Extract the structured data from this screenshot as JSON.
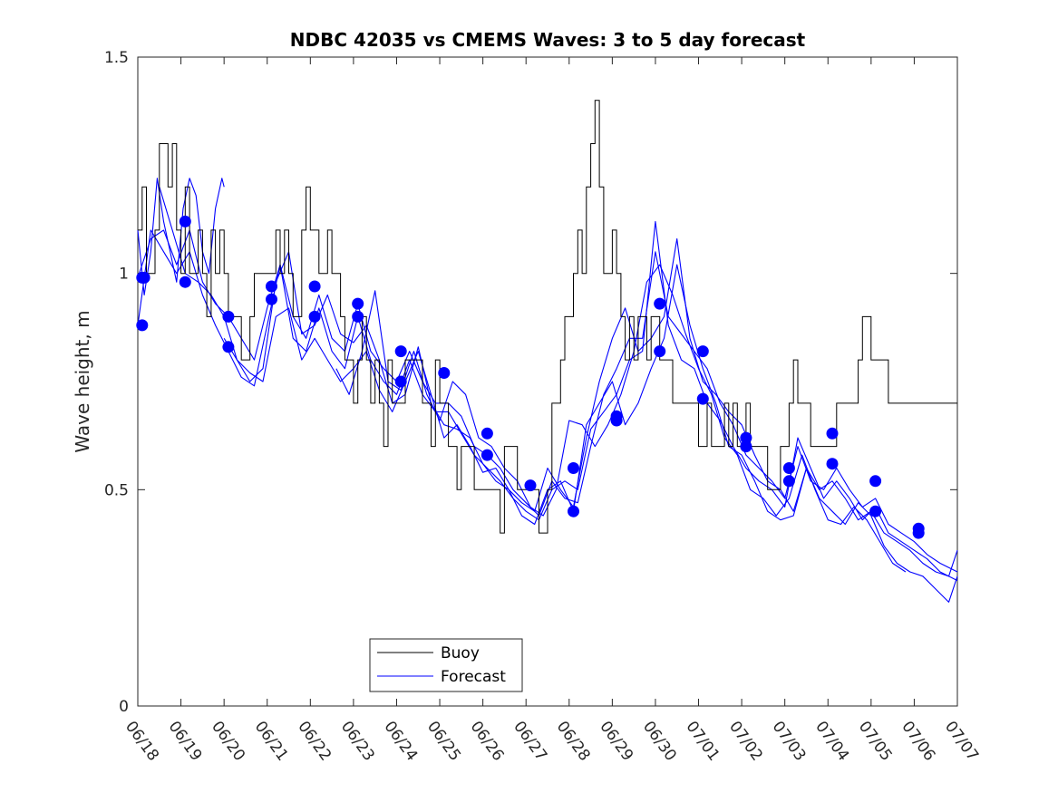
{
  "chart_data": {
    "type": "line",
    "title": "NDBC 42035 vs CMEMS Waves: 3 to 5 day forecast",
    "xlabel": "",
    "ylabel": "Wave height, m",
    "xlim": [
      "06/18",
      "07/07"
    ],
    "ylim": [
      0,
      1.5
    ],
    "yticks": [
      0,
      0.5,
      1,
      1.5
    ],
    "ytick_labels": [
      "0",
      "0.5",
      "1",
      "1.5"
    ],
    "xtick_labels": [
      "06/18",
      "06/19",
      "06/20",
      "06/21",
      "06/22",
      "06/23",
      "06/24",
      "06/25",
      "06/26",
      "06/27",
      "06/28",
      "06/29",
      "06/30",
      "07/01",
      "07/02",
      "07/03",
      "07/04",
      "07/05",
      "07/06",
      "07/07"
    ],
    "grid": false,
    "legend": {
      "placement": "bottom-center",
      "entries": [
        "Buoy",
        "Forecast"
      ]
    },
    "colors": {
      "buoy": "#000000",
      "forecast": "#0000ff",
      "markers": "#0000ff"
    },
    "buoy": {
      "name": "Buoy",
      "x": [
        0,
        0.1,
        0.2,
        0.3,
        0.4,
        0.5,
        0.6,
        0.7,
        0.8,
        0.9,
        1,
        1.1,
        1.2,
        1.3,
        1.4,
        1.5,
        1.6,
        1.7,
        1.8,
        1.9,
        2,
        2.1,
        2.2,
        2.3,
        2.4,
        2.5,
        2.6,
        2.7,
        2.8,
        2.9,
        3,
        3.1,
        3.2,
        3.3,
        3.4,
        3.5,
        3.6,
        3.7,
        3.8,
        3.9,
        4,
        4.1,
        4.2,
        4.3,
        4.4,
        4.5,
        4.6,
        4.7,
        4.8,
        4.9,
        5,
        5.1,
        5.2,
        5.3,
        5.4,
        5.5,
        5.6,
        5.7,
        5.8,
        5.9,
        6,
        6.1,
        6.2,
        6.3,
        6.4,
        6.5,
        6.6,
        6.7,
        6.8,
        6.9,
        7,
        7.1,
        7.2,
        7.3,
        7.4,
        7.5,
        7.6,
        7.7,
        7.8,
        7.9,
        8,
        8.1,
        8.2,
        8.3,
        8.4,
        8.5,
        8.6,
        8.7,
        8.8,
        8.9,
        9,
        9.1,
        9.2,
        9.3,
        9.4,
        9.5,
        9.6,
        9.7,
        9.8,
        9.9,
        10,
        10.1,
        10.2,
        10.3,
        10.4,
        10.5,
        10.6,
        10.7,
        10.8,
        10.9,
        11,
        11.1,
        11.2,
        11.3,
        11.4,
        11.5,
        11.6,
        11.7,
        11.8,
        11.9,
        12,
        12.1,
        12.2,
        12.3,
        12.4,
        12.5,
        12.6,
        12.7,
        12.8,
        12.9,
        13,
        13.1,
        13.2,
        13.3,
        13.4,
        13.5,
        13.6,
        13.7,
        13.8,
        13.9,
        14,
        14.1,
        14.2,
        14.3,
        14.4,
        14.5,
        14.6,
        14.7,
        14.8,
        14.9,
        15,
        15.1,
        15.2,
        15.3,
        15.4,
        15.5,
        15.6,
        15.7,
        15.8,
        15.9,
        16,
        16.1,
        16.2,
        16.3,
        16.4,
        16.5,
        16.6,
        16.7,
        16.8,
        16.9,
        17,
        17.1,
        17.2,
        17.3,
        17.4,
        17.5,
        17.6,
        17.7,
        17.8,
        17.9,
        18,
        18.1,
        18.2,
        18.3,
        18.4,
        18.5,
        18.6,
        18.7,
        18.8,
        18.9,
        19
      ],
      "y": [
        1.1,
        1.2,
        1.0,
        1.0,
        1.1,
        1.3,
        1.3,
        1.2,
        1.3,
        1.1,
        1.0,
        1.2,
        1.0,
        1.0,
        1.1,
        1.0,
        0.9,
        1.1,
        1.0,
        1.1,
        1.0,
        0.9,
        0.9,
        0.9,
        0.8,
        0.8,
        0.9,
        1.0,
        1.0,
        1.0,
        1.0,
        1.0,
        1.1,
        1.0,
        1.1,
        1.0,
        0.9,
        0.9,
        1.1,
        1.2,
        1.1,
        1.1,
        1.0,
        1.0,
        1.1,
        1.0,
        1.0,
        0.9,
        0.8,
        0.8,
        0.7,
        0.8,
        0.9,
        0.8,
        0.7,
        0.8,
        0.7,
        0.6,
        0.8,
        0.7,
        0.7,
        0.7,
        0.8,
        0.8,
        0.8,
        0.8,
        0.7,
        0.7,
        0.6,
        0.8,
        0.7,
        0.7,
        0.6,
        0.6,
        0.5,
        0.6,
        0.6,
        0.6,
        0.5,
        0.5,
        0.5,
        0.5,
        0.5,
        0.5,
        0.4,
        0.6,
        0.6,
        0.6,
        0.5,
        0.5,
        0.5,
        0.5,
        0.5,
        0.4,
        0.4,
        0.5,
        0.7,
        0.7,
        0.8,
        0.9,
        0.9,
        1.0,
        1.1,
        1.0,
        1.2,
        1.3,
        1.4,
        1.2,
        1.0,
        1.0,
        1.1,
        1.0,
        0.9,
        0.8,
        0.9,
        0.8,
        0.9,
        0.9,
        0.8,
        0.9,
        0.9,
        0.8,
        0.8,
        0.8,
        0.7,
        0.7,
        0.7,
        0.7,
        0.7,
        0.7,
        0.6,
        0.6,
        0.7,
        0.6,
        0.6,
        0.6,
        0.7,
        0.6,
        0.7,
        0.6,
        0.6,
        0.7,
        0.6,
        0.6,
        0.6,
        0.6,
        0.5,
        0.5,
        0.5,
        0.6,
        0.6,
        0.7,
        0.8,
        0.7,
        0.7,
        0.7,
        0.6,
        0.6,
        0.6,
        0.6,
        0.6,
        0.6,
        0.7,
        0.7,
        0.7,
        0.7,
        0.7,
        0.8,
        0.9,
        0.9,
        0.8,
        0.8,
        0.8,
        0.8,
        0.7,
        0.7,
        0.7,
        0.7,
        0.7,
        0.7,
        0.7,
        0.7,
        0.7,
        0.7,
        0.7,
        0.7,
        0.7,
        0.7,
        0.7,
        0.7,
        0.7
      ]
    },
    "forecast_series": [
      {
        "x": [
          0,
          0.15,
          0.3,
          0.45,
          0.6,
          0.75,
          0.9,
          1.05,
          1.2,
          1.35,
          1.5,
          1.65,
          1.8,
          1.95,
          2.0
        ],
        "y": [
          1.1,
          0.95,
          1.05,
          1.22,
          1.12,
          1.05,
          0.98,
          1.15,
          1.22,
          1.18,
          1.05,
          1.0,
          1.15,
          1.22,
          1.2
        ]
      },
      {
        "x": [
          0,
          0.3,
          0.6,
          0.9,
          1.2,
          1.5,
          1.8,
          2.1,
          2.4,
          2.7,
          3.0,
          3.3,
          3.6,
          3.9,
          4.2,
          4.5,
          4.8,
          5.1,
          5.4,
          5.7,
          6.0,
          6.3,
          6.6,
          6.9,
          7.2,
          7.5,
          7.8,
          8.1,
          8.4,
          8.7,
          9.0,
          9.3,
          9.6,
          9.9,
          10.2,
          10.5,
          10.8,
          11.1,
          11.4,
          11.7,
          12.0,
          12.3,
          12.6,
          12.9,
          13.2,
          13.5,
          13.8,
          14.1,
          14.4,
          14.7,
          15.0,
          15.3,
          15.6,
          15.9,
          16.2,
          16.5,
          16.8,
          17.1,
          17.4,
          17.7,
          18.0,
          18.3,
          18.6,
          19.0
        ],
        "y": [
          0.99,
          1.08,
          1.1,
          1.02,
          1.1,
          0.98,
          0.93,
          0.9,
          0.85,
          0.8,
          0.92,
          1.02,
          0.9,
          0.85,
          0.95,
          0.85,
          0.82,
          0.93,
          0.82,
          0.78,
          0.75,
          0.82,
          0.75,
          0.7,
          0.7,
          0.67,
          0.6,
          0.58,
          0.55,
          0.5,
          0.47,
          0.44,
          0.52,
          0.48,
          0.47,
          0.6,
          0.72,
          0.78,
          0.85,
          0.85,
          1.05,
          0.9,
          0.86,
          0.82,
          0.78,
          0.7,
          0.65,
          0.58,
          0.55,
          0.52,
          0.48,
          0.6,
          0.52,
          0.5,
          0.55,
          0.5,
          0.46,
          0.48,
          0.42,
          0.4,
          0.38,
          0.35,
          0.33,
          0.31
        ]
      },
      {
        "x": [
          0,
          0.3,
          0.6,
          0.9,
          1.2,
          1.5,
          1.8,
          2.1,
          2.4,
          2.7,
          3.0,
          3.3,
          3.6,
          3.9,
          4.2,
          4.5,
          4.8,
          5.1,
          5.4,
          5.7,
          6.0,
          6.3,
          6.6,
          6.9,
          7.2,
          7.5,
          7.8,
          8.1,
          8.4,
          8.7,
          9.0,
          9.3,
          9.6,
          9.9,
          10.2,
          10.5,
          10.8,
          11.1,
          11.4,
          11.7,
          12.0,
          12.3,
          12.6,
          12.9,
          13.2,
          13.5,
          13.8,
          14.1,
          14.4,
          14.7,
          15.0,
          15.3,
          15.6,
          15.9,
          16.2,
          16.5,
          16.8,
          17.1,
          17.4,
          17.7,
          18.0,
          18.3,
          18.6,
          19.0
        ],
        "y": [
          0.88,
          1.1,
          1.05,
          1.0,
          1.05,
          0.95,
          0.88,
          0.82,
          0.76,
          0.74,
          0.88,
          1.02,
          0.85,
          0.82,
          0.92,
          0.82,
          0.78,
          0.9,
          0.8,
          0.75,
          0.72,
          0.8,
          0.72,
          0.68,
          0.68,
          0.63,
          0.58,
          0.55,
          0.52,
          0.48,
          0.45,
          0.43,
          0.5,
          0.52,
          0.5,
          0.64,
          0.68,
          0.72,
          0.8,
          0.82,
          1.12,
          0.88,
          0.8,
          0.78,
          0.7,
          0.66,
          0.6,
          0.55,
          0.52,
          0.5,
          0.46,
          0.62,
          0.55,
          0.48,
          0.52,
          0.48,
          0.43,
          0.46,
          0.4,
          0.38,
          0.36,
          0.34,
          0.31,
          0.29
        ]
      },
      {
        "x": [
          0.5,
          0.8,
          1.1,
          1.4,
          1.7,
          2.0,
          2.3,
          2.6,
          2.9,
          3.2,
          3.5,
          3.8,
          4.1,
          4.4,
          4.7,
          5.0,
          5.3,
          5.6,
          5.9,
          6.2,
          6.5,
          6.8,
          7.1,
          7.4,
          7.7,
          8.0,
          8.3,
          8.6,
          8.9,
          9.2,
          9.5,
          9.8,
          10.1,
          10.4,
          10.7,
          11.0,
          11.3,
          11.6,
          11.9,
          12.2,
          12.5,
          12.8,
          13.1,
          13.4,
          13.7,
          14.0,
          14.3,
          14.6,
          14.9,
          15.2,
          15.5,
          15.8,
          16.1,
          16.4,
          16.7,
          17.0,
          17.3,
          17.6,
          17.9,
          18.2,
          18.5,
          18.8,
          19.0
        ],
        "y": [
          1.2,
          1.1,
          1.0,
          0.98,
          0.95,
          0.9,
          0.8,
          0.75,
          0.78,
          0.98,
          1.05,
          0.86,
          0.88,
          0.95,
          0.86,
          0.84,
          0.88,
          0.8,
          0.7,
          0.72,
          0.83,
          0.7,
          0.65,
          0.64,
          0.62,
          0.56,
          0.52,
          0.5,
          0.47,
          0.45,
          0.55,
          0.5,
          0.46,
          0.62,
          0.75,
          0.85,
          0.92,
          0.82,
          0.85,
          0.9,
          1.08,
          0.85,
          0.75,
          0.72,
          0.68,
          0.65,
          0.58,
          0.52,
          0.5,
          0.45,
          0.55,
          0.5,
          0.52,
          0.48,
          0.43,
          0.45,
          0.4,
          0.38,
          0.36,
          0.33,
          0.31,
          0.3,
          0.36
        ]
      },
      {
        "x": [
          2.0,
          2.3,
          2.6,
          2.9,
          3.2,
          3.5,
          3.8,
          4.1,
          4.4,
          4.7,
          5.0,
          5.3,
          5.6,
          5.9,
          6.2,
          6.5,
          6.8,
          7.1,
          7.4,
          7.7,
          8.0,
          8.3,
          8.6,
          8.9,
          9.2,
          9.5,
          9.8,
          10.1,
          10.4,
          10.7,
          11.0,
          11.3,
          11.6,
          11.9,
          12.2,
          12.5,
          12.8,
          13.1,
          13.4,
          13.7,
          14.0,
          14.3,
          14.6,
          14.9,
          15.2,
          15.5,
          15.8,
          16.1,
          16.4,
          16.7,
          17.0,
          17.3,
          17.6,
          17.9,
          18.2,
          18.5,
          18.8,
          19.0
        ],
        "y": [
          0.85,
          0.8,
          0.77,
          0.75,
          0.9,
          0.92,
          0.8,
          0.85,
          0.8,
          0.75,
          0.78,
          0.82,
          0.73,
          0.68,
          0.75,
          0.82,
          0.72,
          0.62,
          0.65,
          0.6,
          0.54,
          0.55,
          0.5,
          0.44,
          0.42,
          0.5,
          0.52,
          0.45,
          0.65,
          0.7,
          0.75,
          0.65,
          0.7,
          0.78,
          0.85,
          1.02,
          0.88,
          0.78,
          0.7,
          0.6,
          0.58,
          0.52,
          0.45,
          0.43,
          0.44,
          0.55,
          0.48,
          0.45,
          0.42,
          0.47,
          0.44,
          0.37,
          0.33,
          0.31,
          0.3,
          0.27,
          0.24,
          0.3
        ]
      },
      {
        "x": [
          4.6,
          4.9,
          5.2,
          5.5,
          5.8,
          6.1,
          6.4,
          6.7,
          7.0,
          7.3,
          7.6,
          7.9,
          8.2,
          8.5,
          8.8,
          9.1,
          9.4,
          9.7,
          10.0,
          10.3,
          10.6,
          10.9,
          11.2,
          11.5,
          11.8,
          12.1,
          12.4,
          12.7,
          13.0,
          13.3,
          13.6,
          13.9,
          14.2,
          14.5,
          14.8,
          15.1,
          15.4,
          15.7,
          16.0,
          16.3,
          16.6,
          16.9,
          17.2,
          17.5,
          17.8
        ],
        "y": [
          0.78,
          0.72,
          0.82,
          0.96,
          0.75,
          0.73,
          0.82,
          0.72,
          0.66,
          0.75,
          0.72,
          0.62,
          0.6,
          0.55,
          0.52,
          0.46,
          0.44,
          0.5,
          0.66,
          0.65,
          0.6,
          0.65,
          0.72,
          0.82,
          0.98,
          1.02,
          0.95,
          0.86,
          0.78,
          0.72,
          0.62,
          0.58,
          0.5,
          0.48,
          0.44,
          0.48,
          0.58,
          0.5,
          0.43,
          0.42,
          0.46,
          0.43,
          0.38,
          0.33,
          0.31
        ]
      }
    ],
    "forecast_markers": {
      "x": [
        0.1,
        0.15,
        0.1,
        1.1,
        1.1,
        2.1,
        2.1,
        3.1,
        3.1,
        4.1,
        4.1,
        5.1,
        5.1,
        6.1,
        6.1,
        7.1,
        8.1,
        8.1,
        9.1,
        10.1,
        10.1,
        11.1,
        11.1,
        12.1,
        12.1,
        13.1,
        13.1,
        14.1,
        14.1,
        15.1,
        15.1,
        16.1,
        16.1,
        17.1,
        17.1,
        18.1,
        18.1
      ],
      "y": [
        0.88,
        0.99,
        0.99,
        1.12,
        0.98,
        0.9,
        0.83,
        0.97,
        0.94,
        0.97,
        0.9,
        0.93,
        0.9,
        0.82,
        0.75,
        0.77,
        0.63,
        0.58,
        0.51,
        0.45,
        0.55,
        0.67,
        0.66,
        0.93,
        0.82,
        0.82,
        0.71,
        0.62,
        0.6,
        0.55,
        0.52,
        0.63,
        0.56,
        0.52,
        0.45,
        0.41,
        0.4
      ]
    }
  }
}
